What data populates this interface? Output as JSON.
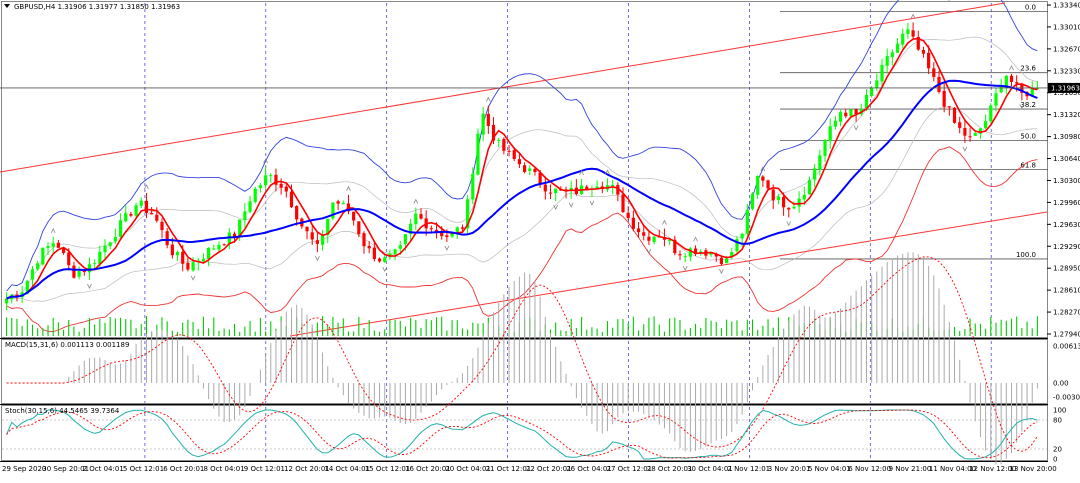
{
  "main": {
    "title": "GBPUSD,H4  1.31906 1.31977 1.31850 1.31963",
    "current_price": "1.31963",
    "y_ticks": [
      "1.33340",
      "1.33010",
      "1.32670",
      "1.32330",
      "1.31650",
      "1.31320",
      "1.30980",
      "1.30640",
      "1.30300",
      "1.29960",
      "1.29630",
      "1.29290",
      "1.28950",
      "1.28610",
      "1.28270",
      "1.27940"
    ],
    "fib_levels": [
      {
        "label": "0.0",
        "price": 1.332
      },
      {
        "label": "23.6",
        "price": 1.3221
      },
      {
        "label": "38.2",
        "price": 1.3162
      },
      {
        "label": "50.0",
        "price": 1.3111
      },
      {
        "label": "61.8",
        "price": 1.3064
      },
      {
        "label": "100.0",
        "price": 1.2919
      }
    ]
  },
  "macd": {
    "title": "MACD(15,31,6) 0.001113 0.001189",
    "y_ticks": [
      "0.006138",
      "0.00",
      "-0.003031"
    ]
  },
  "stoch": {
    "title": "Stoch(30,15,6) 44.5465 39.7364",
    "y_ticks": [
      "100",
      "80",
      "20",
      "0"
    ]
  },
  "x_labels": [
    "29 Sep 2020",
    "30 Sep 20:01",
    "2 Oct 04:01",
    "5 Oct 12:01",
    "6 Oct 20:01",
    "8 Oct 04:01",
    "9 Oct 12:01",
    "12 Oct 20:01",
    "14 Oct 04:01",
    "15 Oct 12:01",
    "16 Oct 20:01",
    "20 Oct 04:01",
    "21 Oct 12:01",
    "22 Oct 20:01",
    "26 Oct 04:01",
    "27 Oct 12:01",
    "28 Oct 20:01",
    "30 Oct 04:01",
    "2 Nov 12:01",
    "3 Nov 20:01",
    "5 Nov 04:01",
    "6 Nov 12:00",
    "9 Nov 21:00",
    "11 Nov 04:00",
    "12 Nov 12:00",
    "13 Nov 20:00"
  ],
  "colors": {
    "bull": "#00ff00",
    "bear": "#ff0000",
    "ma_fast": "#ff0000",
    "ma_slow": "#0000ff",
    "grid": "#3333cc",
    "channel": "#ff3333"
  },
  "chart_data": {
    "type": "candlestick",
    "symbol": "GBPUSD",
    "timeframe": "H4",
    "ylim": [
      1.2794,
      1.3334
    ],
    "close_path": [
      1.2855,
      1.287,
      1.2925,
      1.295,
      1.2895,
      1.2905,
      1.294,
      1.2975,
      1.301,
      1.299,
      1.2935,
      1.2905,
      1.2925,
      1.2945,
      1.296,
      1.3025,
      1.3055,
      1.3035,
      1.2975,
      1.2935,
      1.3015,
      1.2995,
      1.2935,
      1.2915,
      1.293,
      1.299,
      1.297,
      1.2955,
      1.2975,
      1.316,
      1.3105,
      1.308,
      1.306,
      1.3035,
      1.3025,
      1.303,
      1.3045,
      1.3035,
      1.2985,
      1.2955,
      1.296,
      1.293,
      1.2935,
      1.293,
      1.2915,
      1.2965,
      1.306,
      1.3015,
      1.3005,
      1.304,
      1.311,
      1.316,
      1.315,
      1.32,
      1.325,
      1.329,
      1.3245,
      1.319,
      1.3135,
      1.311,
      1.315,
      1.3222,
      1.3185,
      1.3196
    ]
  }
}
